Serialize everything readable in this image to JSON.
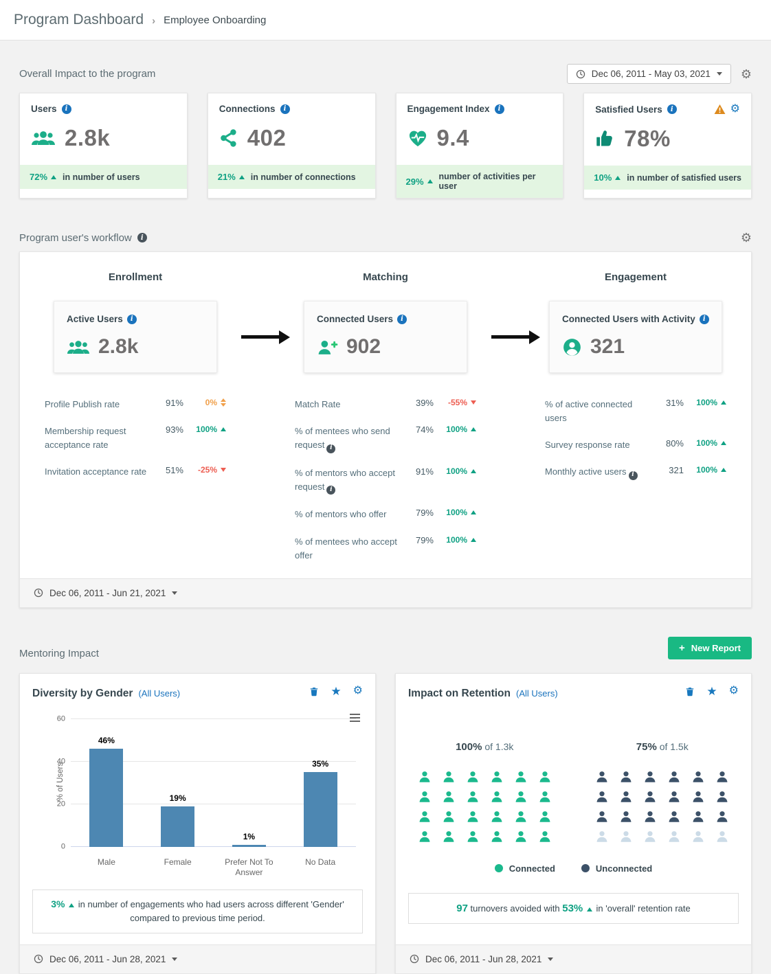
{
  "header": {
    "title": "Program Dashboard",
    "breadcrumb_separator": "›",
    "program_name": "Employee Onboarding"
  },
  "colors": {
    "accent_teal": "#1cae89",
    "positive": "#0fa183",
    "negative": "#ed5e52",
    "neutral_orange": "#f0a04b",
    "info_blue": "#1a73bd",
    "icon_blue": "#1878be",
    "bar_blue": "#4d87b2",
    "navy": "#3c5168",
    "faded_person": "#ccdbe7",
    "warning_orange": "#dd8a1d",
    "button_green": "#19b983",
    "footer_green_bg": "#e3f5e2"
  },
  "overall_section": {
    "title": "Overall Impact to the program",
    "date_range": "Dec 06, 2011 - May 03, 2021",
    "cards": [
      {
        "title": "Users",
        "value": "2.8k",
        "delta": "72%",
        "footer": "in number of users"
      },
      {
        "title": "Connections",
        "value": "402",
        "delta": "21%",
        "footer": "in number of connections"
      },
      {
        "title": "Engagement Index",
        "value": "9.4",
        "delta": "29%",
        "footer": "number of activities per user"
      },
      {
        "title": "Satisfied Users",
        "value": "78%",
        "delta": "10%",
        "footer": "in number of satisfied users"
      }
    ]
  },
  "workflow_section": {
    "title": "Program user's workflow",
    "date_range": "Dec 06, 2011 - Jun 21, 2021",
    "stages": [
      {
        "label": "Enrollment",
        "card": {
          "title": "Active Users",
          "value": "2.8k"
        },
        "metrics": [
          {
            "label": "Profile Publish rate",
            "value": "91%",
            "delta": "0%",
            "dir": "neutral"
          },
          {
            "label": "Membership request acceptance rate",
            "value": "93%",
            "delta": "100%",
            "dir": "up"
          },
          {
            "label": "Invitation acceptance rate",
            "value": "51%",
            "delta": "-25%",
            "dir": "down"
          }
        ]
      },
      {
        "label": "Matching",
        "card": {
          "title": "Connected Users",
          "value": "902"
        },
        "metrics": [
          {
            "label": "Match Rate",
            "value": "39%",
            "delta": "-55%",
            "dir": "down"
          },
          {
            "label": "% of mentees who send request",
            "info": true,
            "value": "74%",
            "delta": "100%",
            "dir": "up"
          },
          {
            "label": "% of mentors who accept request",
            "info": true,
            "value": "91%",
            "delta": "100%",
            "dir": "up"
          },
          {
            "label": "% of mentors who offer",
            "value": "79%",
            "delta": "100%",
            "dir": "up"
          },
          {
            "label": "% of mentees who accept offer",
            "value": "79%",
            "delta": "100%",
            "dir": "up"
          }
        ]
      },
      {
        "label": "Engagement",
        "card": {
          "title": "Connected Users with Activity",
          "value": "321"
        },
        "metrics": [
          {
            "label": "% of active connected users",
            "value": "31%",
            "delta": "100%",
            "dir": "up"
          },
          {
            "label": "Survey response rate",
            "value": "80%",
            "delta": "100%",
            "dir": "up"
          },
          {
            "label": "Monthly active users",
            "info": true,
            "value": "321",
            "delta": "100%",
            "dir": "up"
          }
        ]
      }
    ]
  },
  "mentoring_section": {
    "title": "Mentoring Impact",
    "new_report_label": "New Report",
    "diversity": {
      "title": "Diversity by Gender",
      "scope": "(All Users)",
      "note_delta": "3%",
      "note_text": "in number of engagements who had users across different 'Gender' compared to previous time period.",
      "date_range": "Dec 06, 2011 - Jun 28, 2021"
    },
    "retention": {
      "title": "Impact on Retention",
      "scope": "(All Users)",
      "groups": [
        {
          "headline_pct": "100%",
          "headline_rest": "of 1.3k",
          "rows": 4,
          "cols": 6,
          "filled": 24,
          "type": "connected"
        },
        {
          "headline_pct": "75%",
          "headline_rest": "of 1.5k",
          "rows": 4,
          "cols": 6,
          "filled": 18,
          "type": "unconnected"
        }
      ],
      "legend": [
        {
          "label": "Connected"
        },
        {
          "label": "Unconnected"
        }
      ],
      "note": {
        "value": "97",
        "text1": "turnovers avoided with",
        "pct": "53%",
        "text2": "in 'overall' retention rate"
      },
      "date_range": "Dec 06, 2011 - Jun 28, 2021"
    }
  },
  "chart_data": [
    {
      "type": "bar",
      "title": "Diversity by Gender (All Users)",
      "categories": [
        "Male",
        "Female",
        "Prefer Not To Answer",
        "No Data"
      ],
      "values": [
        46,
        19,
        1,
        35
      ],
      "data_labels": [
        "46%",
        "19%",
        "1%",
        "35%"
      ],
      "xlabel": "",
      "ylabel": "% of Users",
      "ylim": [
        0,
        60
      ],
      "yticks": [
        0,
        20,
        40,
        60
      ],
      "grid": true,
      "bar_color": "#4d87b2",
      "legend_position": "none"
    },
    {
      "type": "pictogram",
      "title": "Impact on Retention (All Users)",
      "groups": [
        {
          "label": "Connected",
          "headline": "100% of 1.3k",
          "total_icons": 24,
          "filled_icons": 24
        },
        {
          "label": "Unconnected",
          "headline": "75% of 1.5k",
          "total_icons": 24,
          "filled_icons": 18
        }
      ],
      "legend": [
        "Connected",
        "Unconnected"
      ],
      "annotation": "97 turnovers avoided with 53% ▲ in 'overall' retention rate"
    }
  ]
}
